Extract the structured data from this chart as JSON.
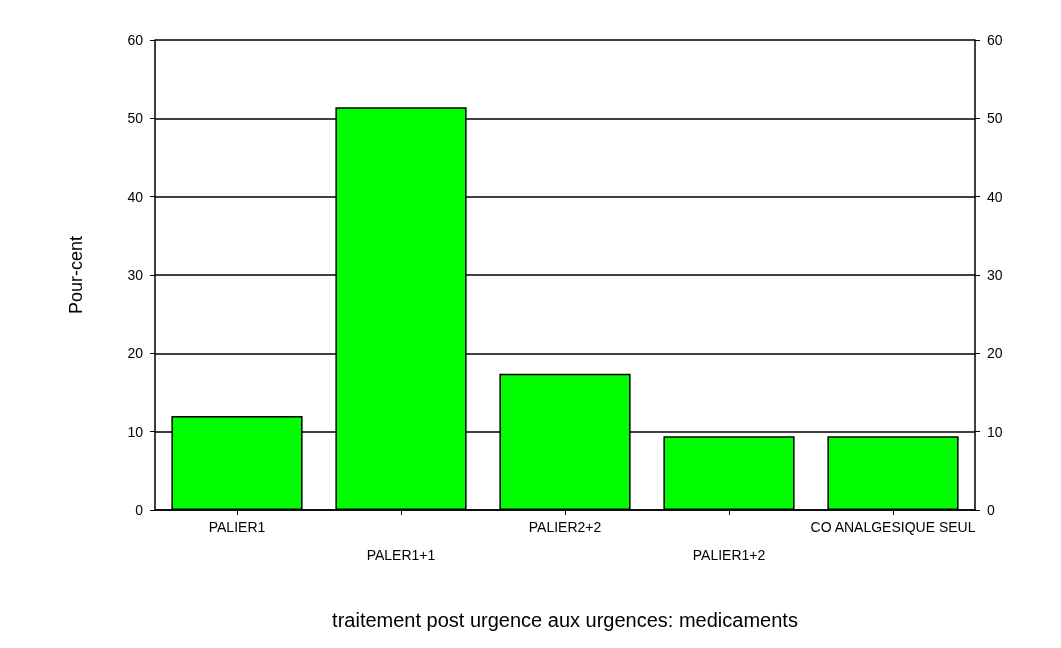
{
  "chart_data": {
    "type": "bar",
    "xlabel": "traitement post urgence aux urgences: medicaments",
    "ylabel": "Pour-cent",
    "categories": [
      "PALIER1",
      "PALER1+1",
      "PALIER2+2",
      "PALIER1+2",
      "CO ANALGESIQUE SEUL"
    ],
    "values": [
      12,
      51.4,
      17.4,
      9.4,
      9.4
    ],
    "color": "#00ff00",
    "ylim": [
      0,
      60
    ],
    "yticks": [
      0,
      10,
      20,
      30,
      40,
      50,
      60
    ],
    "y2lim": [
      0,
      60
    ],
    "y2ticks": [
      0,
      10,
      20,
      30,
      40,
      50,
      60
    ],
    "grid": "y"
  }
}
